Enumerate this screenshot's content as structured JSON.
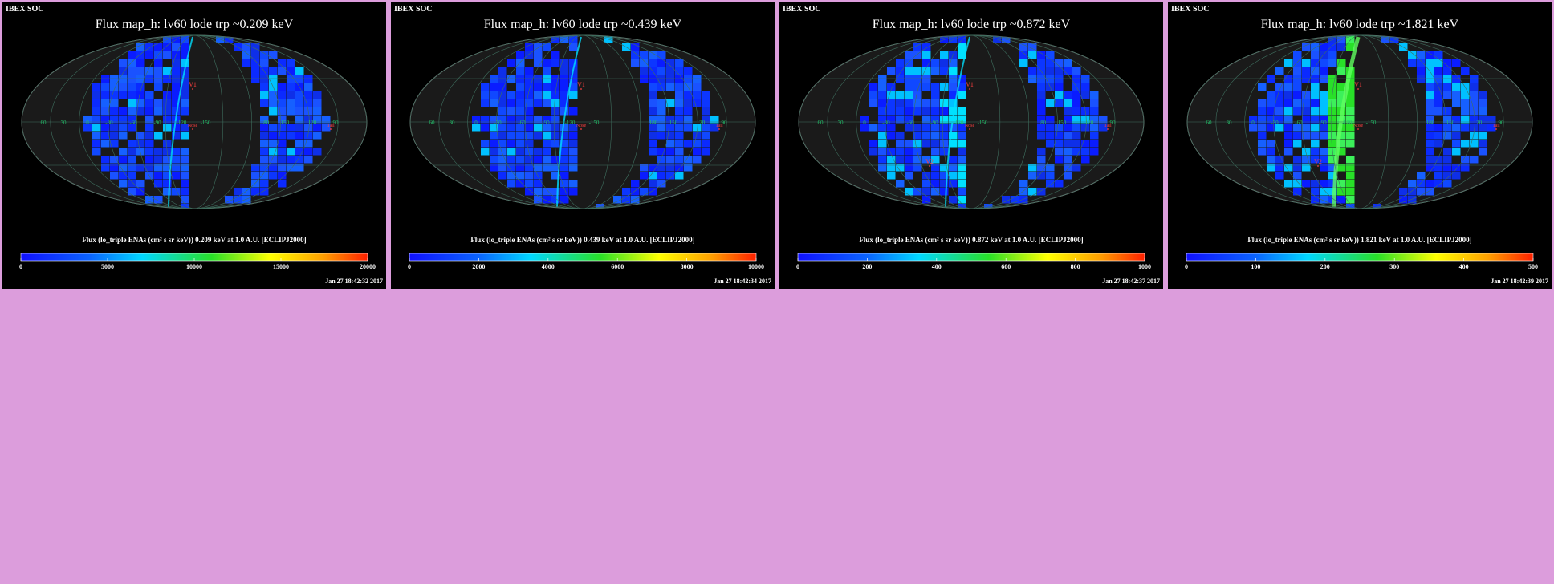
{
  "header": "IBEX SOC",
  "panels": [
    {
      "title": "Flux   map_h: lv60 lode trp ~0.209 keV",
      "cb_title": "Flux (lo_triple ENAs (cm² s sr keV))  0.209 keV at 1.0 A.U. [ECLIPJ2000]",
      "ticks": [
        "0",
        "5000",
        "10000",
        "15000",
        "20000"
      ],
      "timestamp": "Jan 27 18:42:32 2017"
    },
    {
      "title": "Flux   map_h: lv60 lode trp ~0.439 keV",
      "cb_title": "Flux (lo_triple ENAs (cm² s sr keV))  0.439 keV at 1.0 A.U. [ECLIPJ2000]",
      "ticks": [
        "0",
        "2000",
        "4000",
        "6000",
        "8000",
        "10000"
      ],
      "timestamp": "Jan 27 18:42:34 2017"
    },
    {
      "title": "Flux   map_h: lv60 lode trp ~0.872 keV",
      "cb_title": "Flux (lo_triple ENAs (cm² s sr keV))  0.872 keV at 1.0 A.U. [ECLIPJ2000]",
      "ticks": [
        "0",
        "200",
        "400",
        "600",
        "800",
        "1000"
      ],
      "timestamp": "Jan 27 18:42:37 2017"
    },
    {
      "title": "Flux   map_h: lv60 lode trp ~1.821 keV",
      "cb_title": "Flux (lo_triple ENAs (cm² s sr keV))  1.821 keV at 1.0 A.U. [ECLIPJ2000]",
      "ticks": [
        "0",
        "100",
        "200",
        "300",
        "400",
        "500"
      ],
      "timestamp": "Jan 27 18:42:39 2017"
    }
  ],
  "map_labels": {
    "longitudes": [
      "60",
      "30",
      "0",
      "-30",
      "-60",
      "-90",
      "-120",
      "-150",
      "180",
      "150",
      "120",
      "90"
    ],
    "markers": [
      "V1",
      "Nose",
      "Tail",
      "V2"
    ]
  },
  "colors": {
    "page_bg": "#dc9ddc",
    "panel_bg": "#000000",
    "map_bg": "#1a1a1a",
    "grid": "#3f6f5f",
    "marker": "#ff4040",
    "axis_label": "#24c06a"
  },
  "chart_data": [
    {
      "type": "heatmap",
      "projection": "mollweide",
      "energy_keV": 0.209,
      "colorbar_range": [
        0,
        20000
      ]
    },
    {
      "type": "heatmap",
      "projection": "mollweide",
      "energy_keV": 0.439,
      "colorbar_range": [
        0,
        10000
      ]
    },
    {
      "type": "heatmap",
      "projection": "mollweide",
      "energy_keV": 0.872,
      "colorbar_range": [
        0,
        1000
      ]
    },
    {
      "type": "heatmap",
      "projection": "mollweide",
      "energy_keV": 1.821,
      "colorbar_range": [
        0,
        500
      ]
    }
  ]
}
